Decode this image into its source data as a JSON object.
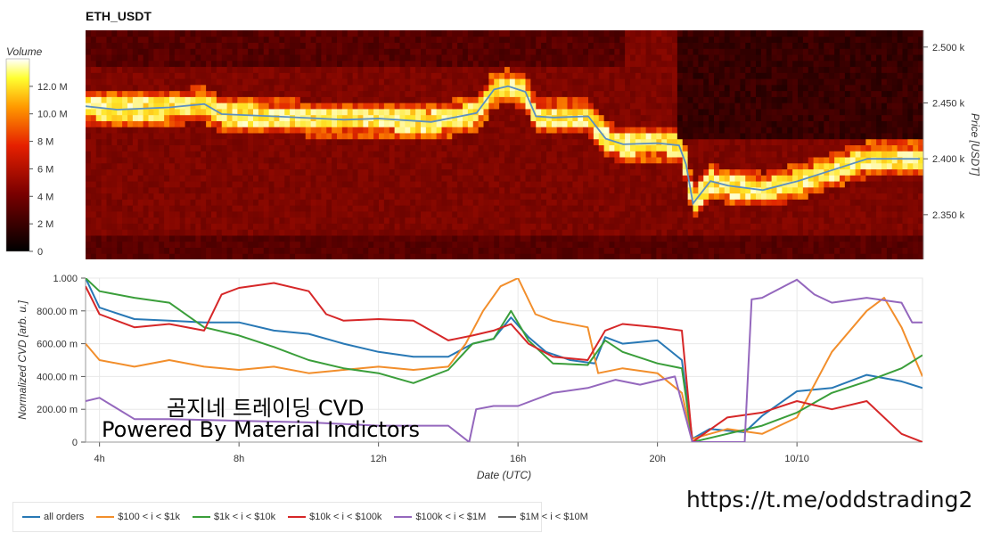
{
  "header": {
    "title": "ETH_USDT"
  },
  "colorbar": {
    "title": "Volume",
    "ticks": [
      "12.0 M",
      "10.0 M",
      "8 M",
      "6 M",
      "4 M",
      "2 M",
      "0"
    ]
  },
  "watermark": {
    "line1": "곰지네 트레이딩 CVD",
    "line2": "Powered By Material Indictors"
  },
  "footer": {
    "url": "https://t.me/oddstrading2"
  },
  "chart_data": [
    {
      "type": "heatmap",
      "title": "ETH_USDT",
      "ylabel": "Price [USDT]",
      "ylim": [
        2310,
        2515
      ],
      "y_ticks": [
        "2.500 k",
        "2.450 k",
        "2.400 k",
        "2.350 k"
      ],
      "y_tick_values": [
        2500,
        2450,
        2400,
        2350
      ],
      "colorbar_label": "Volume",
      "colorbar_range": [
        0,
        14000000
      ],
      "colorbar_ticks": [
        "12.0 M",
        "10.0 M",
        "8 M",
        "6 M",
        "4 M",
        "2 M",
        "0"
      ],
      "colorbar_tick_values": [
        12000000,
        10000000,
        8000000,
        6000000,
        4000000,
        2000000,
        0
      ],
      "price_line": {
        "color": "#5b8fc0",
        "x_hours": [
          3.6,
          4.5,
          6,
          7,
          7.5,
          9,
          11,
          12,
          13.5,
          14.8,
          15.3,
          15.7,
          16.2,
          16.5,
          17,
          18,
          18.5,
          19,
          20,
          20.6,
          20.8,
          21,
          21.5,
          22,
          23,
          24,
          25,
          26,
          27.5
        ],
        "values": [
          2447,
          2444,
          2446,
          2449,
          2440,
          2438,
          2435,
          2436,
          2433,
          2441,
          2462,
          2465,
          2460,
          2438,
          2437,
          2438,
          2418,
          2413,
          2414,
          2412,
          2395,
          2360,
          2380,
          2376,
          2372,
          2380,
          2390,
          2400,
          2400
        ]
      }
    },
    {
      "type": "line",
      "xlabel": "Date (UTC)",
      "ylabel": "Normalized CVD [arb. u.]",
      "ylim": [
        0,
        1.0
      ],
      "y_ticks": [
        "1.000",
        "800.00 m",
        "600.00 m",
        "400.00 m",
        "200.00 m",
        "0"
      ],
      "y_tick_values": [
        1.0,
        0.8,
        0.6,
        0.4,
        0.2,
        0
      ],
      "xlim_hours": [
        3.6,
        27.6
      ],
      "x_ticks": [
        "4h",
        "8h",
        "12h",
        "16h",
        "20h",
        "10/10"
      ],
      "x_tick_hours": [
        4,
        8,
        12,
        16,
        20,
        24
      ],
      "grid": true,
      "legend_position": "bottom-left",
      "series": [
        {
          "name": "all orders",
          "color": "#2878b5",
          "x": [
            3.6,
            4,
            5,
            6,
            7,
            7.5,
            8,
            9,
            10,
            11,
            12,
            13,
            14,
            14.7,
            15.3,
            15.8,
            16.3,
            16.8,
            17.5,
            18.2,
            18.5,
            19,
            20,
            20.7,
            21,
            21.5,
            22,
            22.5,
            23,
            24,
            25,
            26,
            27,
            27.6
          ],
          "values": [
            1.0,
            0.82,
            0.75,
            0.74,
            0.73,
            0.73,
            0.73,
            0.68,
            0.66,
            0.6,
            0.55,
            0.52,
            0.52,
            0.6,
            0.63,
            0.76,
            0.64,
            0.55,
            0.5,
            0.48,
            0.64,
            0.6,
            0.62,
            0.5,
            0.02,
            0.08,
            0.07,
            0.06,
            0.16,
            0.31,
            0.33,
            0.41,
            0.37,
            0.33
          ]
        },
        {
          "name": "$100 < i < $1k",
          "color": "#f28e2b",
          "x": [
            3.6,
            4,
            5,
            6,
            7,
            8,
            9,
            10,
            11,
            12,
            13,
            14,
            14.5,
            15,
            15.5,
            16,
            16.5,
            17,
            18,
            18.3,
            19,
            20,
            20.7,
            21,
            22,
            23,
            24,
            25,
            26,
            26.5,
            27,
            27.6
          ],
          "values": [
            0.6,
            0.5,
            0.46,
            0.5,
            0.46,
            0.44,
            0.46,
            0.42,
            0.44,
            0.46,
            0.44,
            0.46,
            0.6,
            0.8,
            0.95,
            1.0,
            0.78,
            0.74,
            0.7,
            0.42,
            0.45,
            0.42,
            0.3,
            0.02,
            0.08,
            0.05,
            0.15,
            0.55,
            0.8,
            0.88,
            0.7,
            0.4
          ]
        },
        {
          "name": "$1k < i < $10k",
          "color": "#3a9e3a",
          "x": [
            3.6,
            4,
            5,
            6,
            7,
            8,
            9,
            10,
            11,
            12,
            13,
            14,
            14.7,
            15.3,
            15.8,
            16.3,
            17,
            18,
            18.5,
            19,
            20,
            20.7,
            21,
            22,
            23,
            24,
            25,
            26,
            27,
            27.6
          ],
          "values": [
            1.0,
            0.92,
            0.88,
            0.85,
            0.7,
            0.65,
            0.58,
            0.5,
            0.45,
            0.42,
            0.36,
            0.44,
            0.6,
            0.63,
            0.8,
            0.62,
            0.48,
            0.47,
            0.62,
            0.55,
            0.48,
            0.45,
            0.0,
            0.05,
            0.1,
            0.18,
            0.3,
            0.37,
            0.45,
            0.53
          ]
        },
        {
          "name": "$10k < i < $100k",
          "color": "#d62728",
          "x": [
            3.6,
            4,
            5,
            6,
            7,
            7.5,
            8,
            9,
            10,
            10.5,
            11,
            12,
            13,
            14,
            14.7,
            15.3,
            15.8,
            16.3,
            17,
            18,
            18.5,
            19,
            20,
            20.7,
            21,
            22,
            23,
            24,
            25,
            26,
            27,
            27.6
          ],
          "values": [
            0.95,
            0.78,
            0.7,
            0.72,
            0.68,
            0.9,
            0.94,
            0.97,
            0.92,
            0.78,
            0.74,
            0.75,
            0.74,
            0.62,
            0.65,
            0.68,
            0.72,
            0.6,
            0.52,
            0.5,
            0.68,
            0.72,
            0.7,
            0.68,
            0.0,
            0.15,
            0.18,
            0.25,
            0.2,
            0.25,
            0.05,
            0.0
          ]
        },
        {
          "name": "$100k < i < $1M",
          "color": "#9467bd",
          "x": [
            3.6,
            4,
            5,
            6,
            8,
            10,
            12,
            13,
            14,
            14.6,
            14.8,
            15.3,
            16,
            17,
            18,
            18.8,
            19.5,
            20.5,
            21,
            22,
            22.5,
            22.7,
            23,
            24,
            24.5,
            25,
            26,
            27,
            27.3,
            27.6
          ],
          "values": [
            0.25,
            0.27,
            0.14,
            0.14,
            0.13,
            0.12,
            0.1,
            0.1,
            0.1,
            0.0,
            0.2,
            0.22,
            0.22,
            0.3,
            0.33,
            0.38,
            0.35,
            0.4,
            0.0,
            0.0,
            0.0,
            0.87,
            0.88,
            0.99,
            0.9,
            0.85,
            0.88,
            0.85,
            0.73,
            0.73
          ]
        },
        {
          "name": "$1M < i < $10M",
          "color": "#666666",
          "x": [],
          "values": []
        }
      ]
    }
  ],
  "legend": [
    {
      "label": "all orders",
      "color": "#2878b5"
    },
    {
      "label": "$100 < i < $1k",
      "color": "#f28e2b"
    },
    {
      "label": "$1k < i < $10k",
      "color": "#3a9e3a"
    },
    {
      "label": "$10k < i < $100k",
      "color": "#d62728"
    },
    {
      "label": "$100k < i < $1M",
      "color": "#9467bd"
    },
    {
      "label": "$1M < i < $10M",
      "color": "#666666"
    }
  ]
}
